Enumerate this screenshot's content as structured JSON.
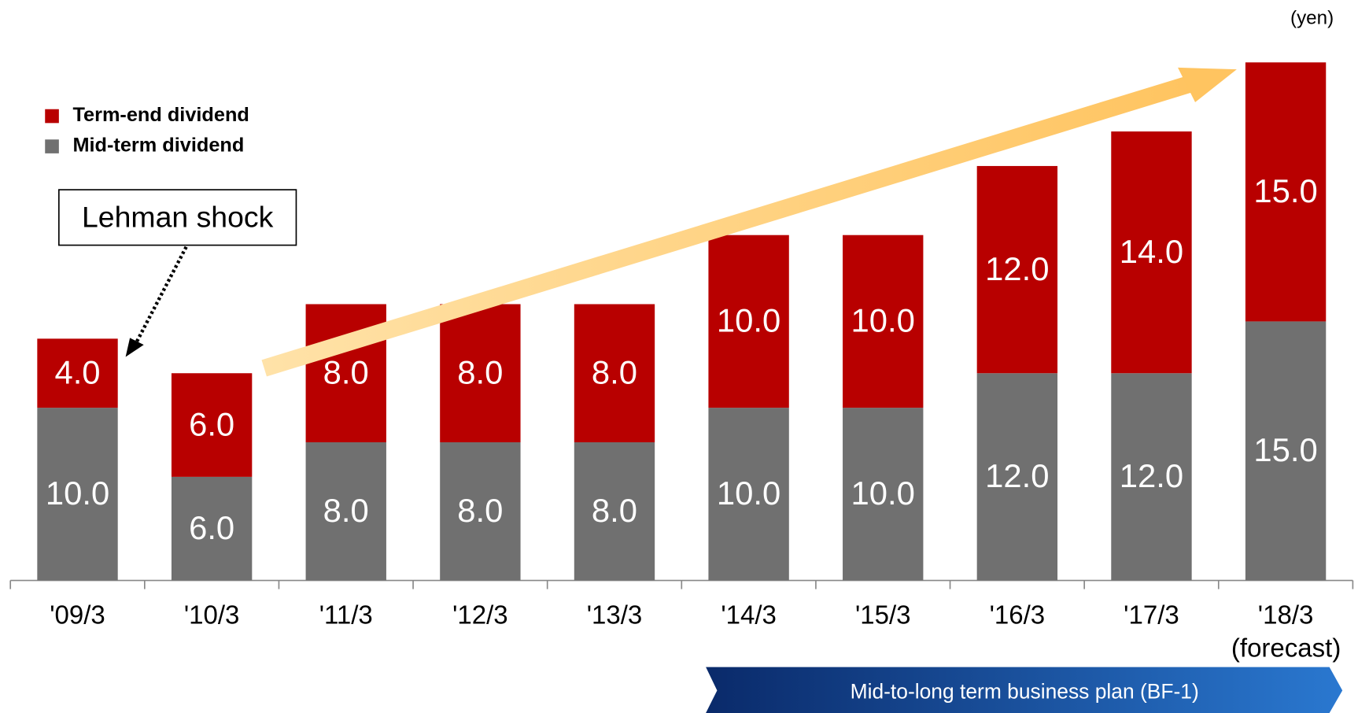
{
  "chart_data": {
    "type": "bar",
    "stacked": true,
    "categories": [
      "'09/3",
      "'10/3",
      "'11/3",
      "'12/3",
      "'13/3",
      "'14/3",
      "'15/3",
      "'16/3",
      "'17/3",
      "'18/3"
    ],
    "series": [
      {
        "name": "Mid-term dividend",
        "color": "#707070",
        "values": [
          10,
          6,
          8,
          8,
          8,
          10,
          10,
          12,
          12,
          15
        ],
        "value_labels": [
          "10.0",
          "6.0",
          "8.0",
          "8.0",
          "8.0",
          "10.0",
          "10.0",
          "12.0",
          "12.0",
          "15.0"
        ]
      },
      {
        "name": "Term-end dividend",
        "color": "#b80000",
        "values": [
          4,
          6,
          8,
          8,
          8,
          10,
          10,
          12,
          14,
          15
        ],
        "value_labels": [
          "4.0",
          "6.0",
          "8.0",
          "8.0",
          "8.0",
          "10.0",
          "10.0",
          "12.0",
          "14.0",
          "15.0"
        ]
      }
    ],
    "ylim": [
      0,
      30
    ],
    "annotations": {
      "unit": "(yen)",
      "event": "Lehman shock",
      "forecast": "(forecast)",
      "plan": "Mid-to-long term business plan (BF-1)"
    }
  }
}
